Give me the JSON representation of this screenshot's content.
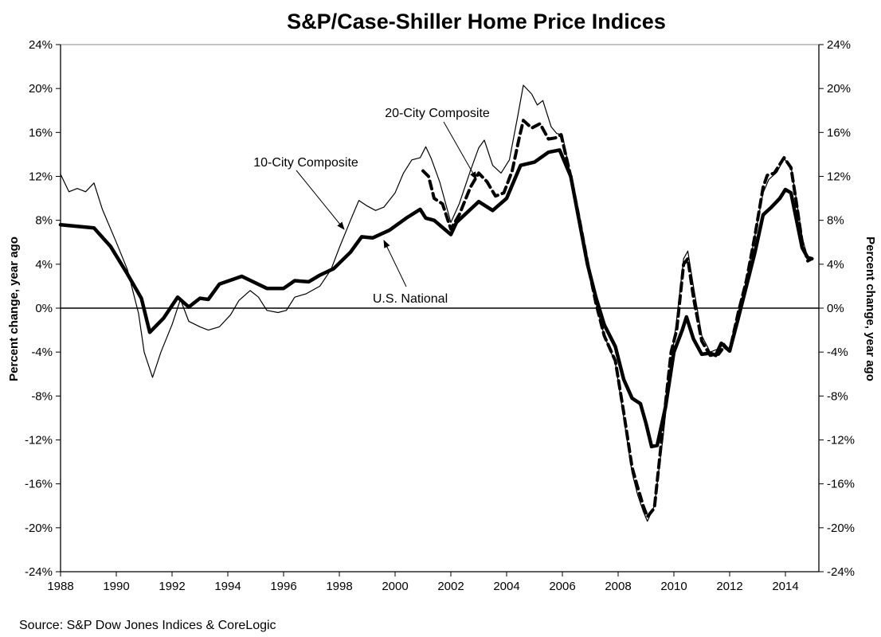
{
  "chart_data": {
    "type": "line",
    "title": "S&P/Case-Shiller Home Price Indices",
    "ylabel": "Percent change, year ago",
    "ylabel_right": "Percent change, year ago",
    "source": "Source: S&P Dow Jones Indices & CoreLogic",
    "xlim": [
      1988,
      2015.2
    ],
    "ylim": [
      -24,
      24
    ],
    "xticks": [
      "1988",
      "1990",
      "1992",
      "1994",
      "1996",
      "1998",
      "2000",
      "2002",
      "2004",
      "2006",
      "2008",
      "2010",
      "2012",
      "2014"
    ],
    "yticks": [
      "24%",
      "20%",
      "16%",
      "12%",
      "8%",
      "4%",
      "0%",
      "-4%",
      "-8%",
      "-12%",
      "-16%",
      "-20%",
      "-24%"
    ],
    "grid": false,
    "legend": "none (inline annotations)",
    "colors": {
      "line": "#000000"
    },
    "series": [
      {
        "name": "10-City Composite",
        "style": "thin solid",
        "x": [
          1988.0,
          1988.3,
          1988.6,
          1988.9,
          1989.2,
          1989.5,
          1990.0,
          1990.4,
          1990.8,
          1991.0,
          1991.3,
          1991.6,
          1992.0,
          1992.3,
          1992.6,
          1993.0,
          1993.3,
          1993.7,
          1994.1,
          1994.4,
          1994.8,
          1995.1,
          1995.4,
          1995.8,
          1996.1,
          1996.4,
          1996.8,
          1997.3,
          1997.7,
          1998.0,
          1998.4,
          1998.7,
          1999.0,
          1999.3,
          1999.6,
          2000.0,
          2000.3,
          2000.6,
          2000.9,
          2001.1,
          2001.3,
          2001.6,
          2002.0,
          2002.3,
          2002.7,
          2003.0,
          2003.2,
          2003.5,
          2003.8,
          2004.1,
          2004.4,
          2004.6,
          2004.9,
          2005.1,
          2005.3,
          2005.6,
          2005.8,
          2006.0,
          2006.3,
          2006.6,
          2006.9,
          2007.2,
          2007.5,
          2007.9,
          2008.2,
          2008.5,
          2008.7,
          2008.9,
          2009.05,
          2009.3,
          2009.6,
          2009.9,
          2010.1,
          2010.35,
          2010.5,
          2010.7,
          2011.0,
          2011.3,
          2011.6,
          2011.8,
          2012.0,
          2012.3,
          2012.6,
          2012.9,
          2013.2,
          2013.4,
          2013.7,
          2013.95,
          2014.2,
          2014.4,
          2014.6,
          2014.8,
          2014.95
        ],
        "y": [
          12.2,
          10.6,
          10.9,
          10.6,
          11.4,
          9.0,
          6.0,
          3.5,
          -0.5,
          -4.0,
          -6.3,
          -4.0,
          -1.5,
          0.8,
          -1.2,
          -1.7,
          -2.0,
          -1.7,
          -0.6,
          0.7,
          1.6,
          1.0,
          -0.2,
          -0.4,
          -0.2,
          1.0,
          1.3,
          2.0,
          3.5,
          5.5,
          8.0,
          9.8,
          9.3,
          8.9,
          9.2,
          10.5,
          12.3,
          13.5,
          13.7,
          14.7,
          13.6,
          11.5,
          7.8,
          9.5,
          12.5,
          14.6,
          15.3,
          13.0,
          12.3,
          13.5,
          17.5,
          20.3,
          19.5,
          18.5,
          18.9,
          16.5,
          15.9,
          15.8,
          12.0,
          8.0,
          4.0,
          0.5,
          -2.5,
          -5.0,
          -10.0,
          -15.0,
          -17.0,
          -18.5,
          -19.4,
          -18.0,
          -12.0,
          -5.0,
          -1.0,
          4.5,
          5.2,
          2.0,
          -2.5,
          -4.0,
          -3.7,
          -3.2,
          -3.8,
          -0.5,
          2.5,
          6.5,
          10.5,
          11.7,
          12.4,
          13.6,
          12.9,
          9.8,
          6.5,
          4.5,
          4.4
        ]
      },
      {
        "name": "20-City Composite",
        "style": "thick dashed",
        "x": [
          2001.0,
          2001.2,
          2001.4,
          2001.7,
          2002.0,
          2002.3,
          2002.7,
          2003.0,
          2003.3,
          2003.6,
          2003.9,
          2004.2,
          2004.45,
          2004.6,
          2004.9,
          2005.2,
          2005.5,
          2005.75,
          2005.95,
          2006.3,
          2006.6,
          2006.9,
          2007.2,
          2007.5,
          2007.9,
          2008.2,
          2008.5,
          2008.7,
          2008.9,
          2009.05,
          2009.3,
          2009.6,
          2009.9,
          2010.1,
          2010.35,
          2010.5,
          2010.7,
          2011.0,
          2011.3,
          2011.6,
          2011.8,
          2012.0,
          2012.3,
          2012.6,
          2012.9,
          2013.2,
          2013.35,
          2013.6,
          2013.95,
          2014.2,
          2014.4,
          2014.6,
          2014.8,
          2014.95
        ],
        "y": [
          12.5,
          12.0,
          10.0,
          9.5,
          7.2,
          8.5,
          11.0,
          12.3,
          11.5,
          10.2,
          10.5,
          12.5,
          15.5,
          17.1,
          16.4,
          16.8,
          15.4,
          15.5,
          15.8,
          12.0,
          8.2,
          4.2,
          0.5,
          -2.5,
          -4.8,
          -9.5,
          -14.5,
          -16.3,
          -18.0,
          -19.0,
          -18.2,
          -11.0,
          -4.0,
          -2.0,
          4.0,
          4.5,
          1.0,
          -3.0,
          -4.3,
          -4.2,
          -3.5,
          -3.9,
          -0.5,
          2.5,
          6.5,
          11.0,
          12.1,
          12.3,
          13.7,
          12.8,
          9.5,
          6.0,
          4.3,
          4.5
        ]
      },
      {
        "name": "U.S. National",
        "style": "thick solid",
        "x": [
          1988.0,
          1989.2,
          1989.8,
          1990.4,
          1990.9,
          1991.2,
          1991.7,
          1992.2,
          1992.6,
          1993.0,
          1993.3,
          1993.7,
          1994.5,
          1995.4,
          1996.0,
          1996.4,
          1996.9,
          1997.3,
          1997.8,
          1998.4,
          1998.8,
          1999.2,
          1999.8,
          2000.4,
          2000.9,
          2001.1,
          2001.4,
          2002.0,
          2002.2,
          2003.0,
          2003.5,
          2004.0,
          2004.5,
          2005.0,
          2005.5,
          2005.9,
          2006.3,
          2006.6,
          2006.9,
          2007.2,
          2007.5,
          2007.9,
          2008.2,
          2008.5,
          2008.8,
          2009.0,
          2009.2,
          2009.4,
          2009.7,
          2010.0,
          2010.3,
          2010.45,
          2010.7,
          2011.0,
          2011.3,
          2011.5,
          2011.7,
          2012.0,
          2012.3,
          2012.6,
          2012.9,
          2013.2,
          2013.5,
          2013.8,
          2014.0,
          2014.2,
          2014.4,
          2014.6,
          2014.8,
          2014.95
        ],
        "y": [
          7.6,
          7.3,
          5.6,
          3.1,
          0.9,
          -2.2,
          -0.9,
          1.0,
          0.1,
          0.9,
          0.8,
          2.2,
          2.9,
          1.8,
          1.8,
          2.5,
          2.4,
          3.0,
          3.6,
          5.1,
          6.5,
          6.4,
          7.1,
          8.2,
          9.0,
          8.2,
          8.0,
          6.7,
          7.8,
          9.7,
          8.9,
          10.0,
          13.0,
          13.3,
          14.2,
          14.4,
          12.0,
          8.0,
          4.0,
          1.0,
          -1.5,
          -3.5,
          -6.5,
          -8.2,
          -8.7,
          -10.5,
          -12.6,
          -12.5,
          -9.0,
          -4.0,
          -2.0,
          -0.8,
          -2.8,
          -4.2,
          -4.1,
          -4.3,
          -3.2,
          -3.9,
          -1.0,
          2.0,
          5.0,
          8.5,
          9.2,
          10.0,
          10.8,
          10.5,
          8.0,
          5.5,
          4.6,
          4.5
        ]
      }
    ],
    "annotations": [
      "10-City Composite",
      "20-City Composite",
      "U.S. National"
    ]
  }
}
